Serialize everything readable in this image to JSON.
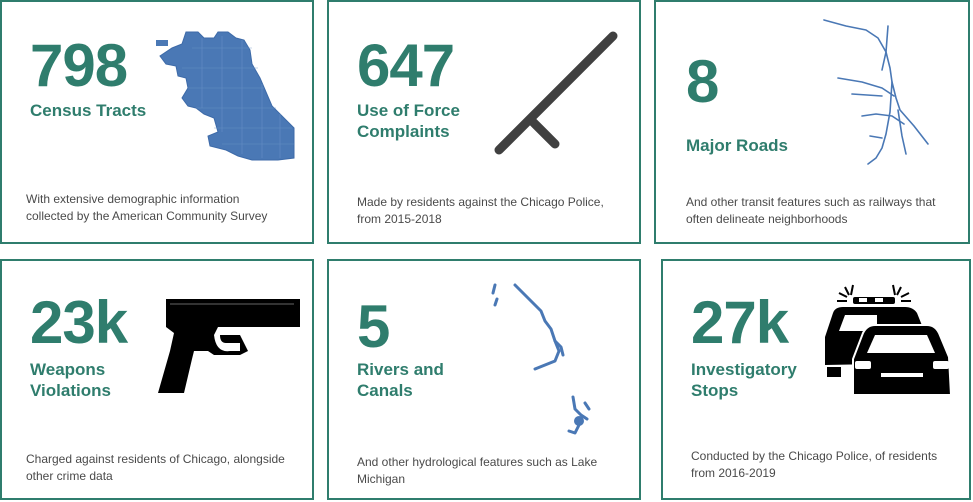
{
  "accent_color": "#2f7d6d",
  "map_color": "#4a78b5",
  "cards": [
    {
      "number": "798",
      "label": "Census Tracts",
      "description": "With extensive demographic information\ncollected by the American Community Survey",
      "icon": "chicago-map-icon"
    },
    {
      "number": "647",
      "label": "Use of Force\nComplaints",
      "description": "Made by residents against the Chicago Police,\nfrom 2015-2018",
      "icon": "baton-icon"
    },
    {
      "number": "8",
      "label": "Major Roads",
      "description": "And other transit features such as railways that\noften delineate neighborhoods",
      "icon": "roads-map-icon"
    },
    {
      "number": "23k",
      "label": "Weapons\nViolations",
      "description": "Charged against residents of Chicago, alongside\nother crime data",
      "icon": "handgun-icon"
    },
    {
      "number": "5",
      "label": "Rivers and\nCanals",
      "description": "And other hydrological features such as Lake\nMichigan",
      "icon": "rivers-map-icon"
    },
    {
      "number": "27k",
      "label": "Investigatory\nStops",
      "description": "Conducted by the Chicago Police, of residents\nfrom 2016-2019",
      "icon": "police-cars-icon"
    }
  ]
}
